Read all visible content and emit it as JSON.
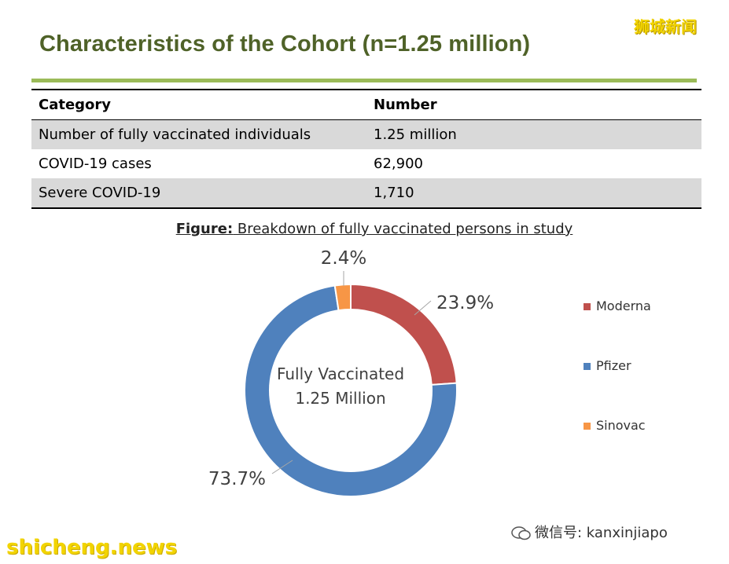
{
  "watermark_top": "狮城新闻",
  "title": "Characteristics of the Cohort (n=1.25 million)",
  "table": {
    "headers": [
      "Category",
      "Number"
    ],
    "rows": [
      [
        "Number of fully vaccinated individuals",
        "1.25 million"
      ],
      [
        "COVID-19 cases",
        "62,900"
      ],
      [
        "Severe COVID-19",
        "1,710"
      ]
    ]
  },
  "figure": {
    "caption_lead": "Figure:",
    "caption_rest": " Breakdown of fully vaccinated persons in study"
  },
  "chart_data": {
    "type": "pie",
    "variant": "donut",
    "center_text": [
      "Fully Vaccinated",
      "1.25 Million"
    ],
    "categories": [
      "Moderna",
      "Pfizer",
      "Sinovac"
    ],
    "values": [
      23.9,
      73.7,
      2.4
    ],
    "data_labels": [
      "23.9%",
      "73.7%",
      "2.4%"
    ],
    "colors": [
      "#c0504d",
      "#4f81bd",
      "#f79646"
    ],
    "legend_position": "right"
  },
  "footer": {
    "site_watermark": "shicheng.news",
    "wechat_watermark": "微信号: kanxinjiapo"
  }
}
